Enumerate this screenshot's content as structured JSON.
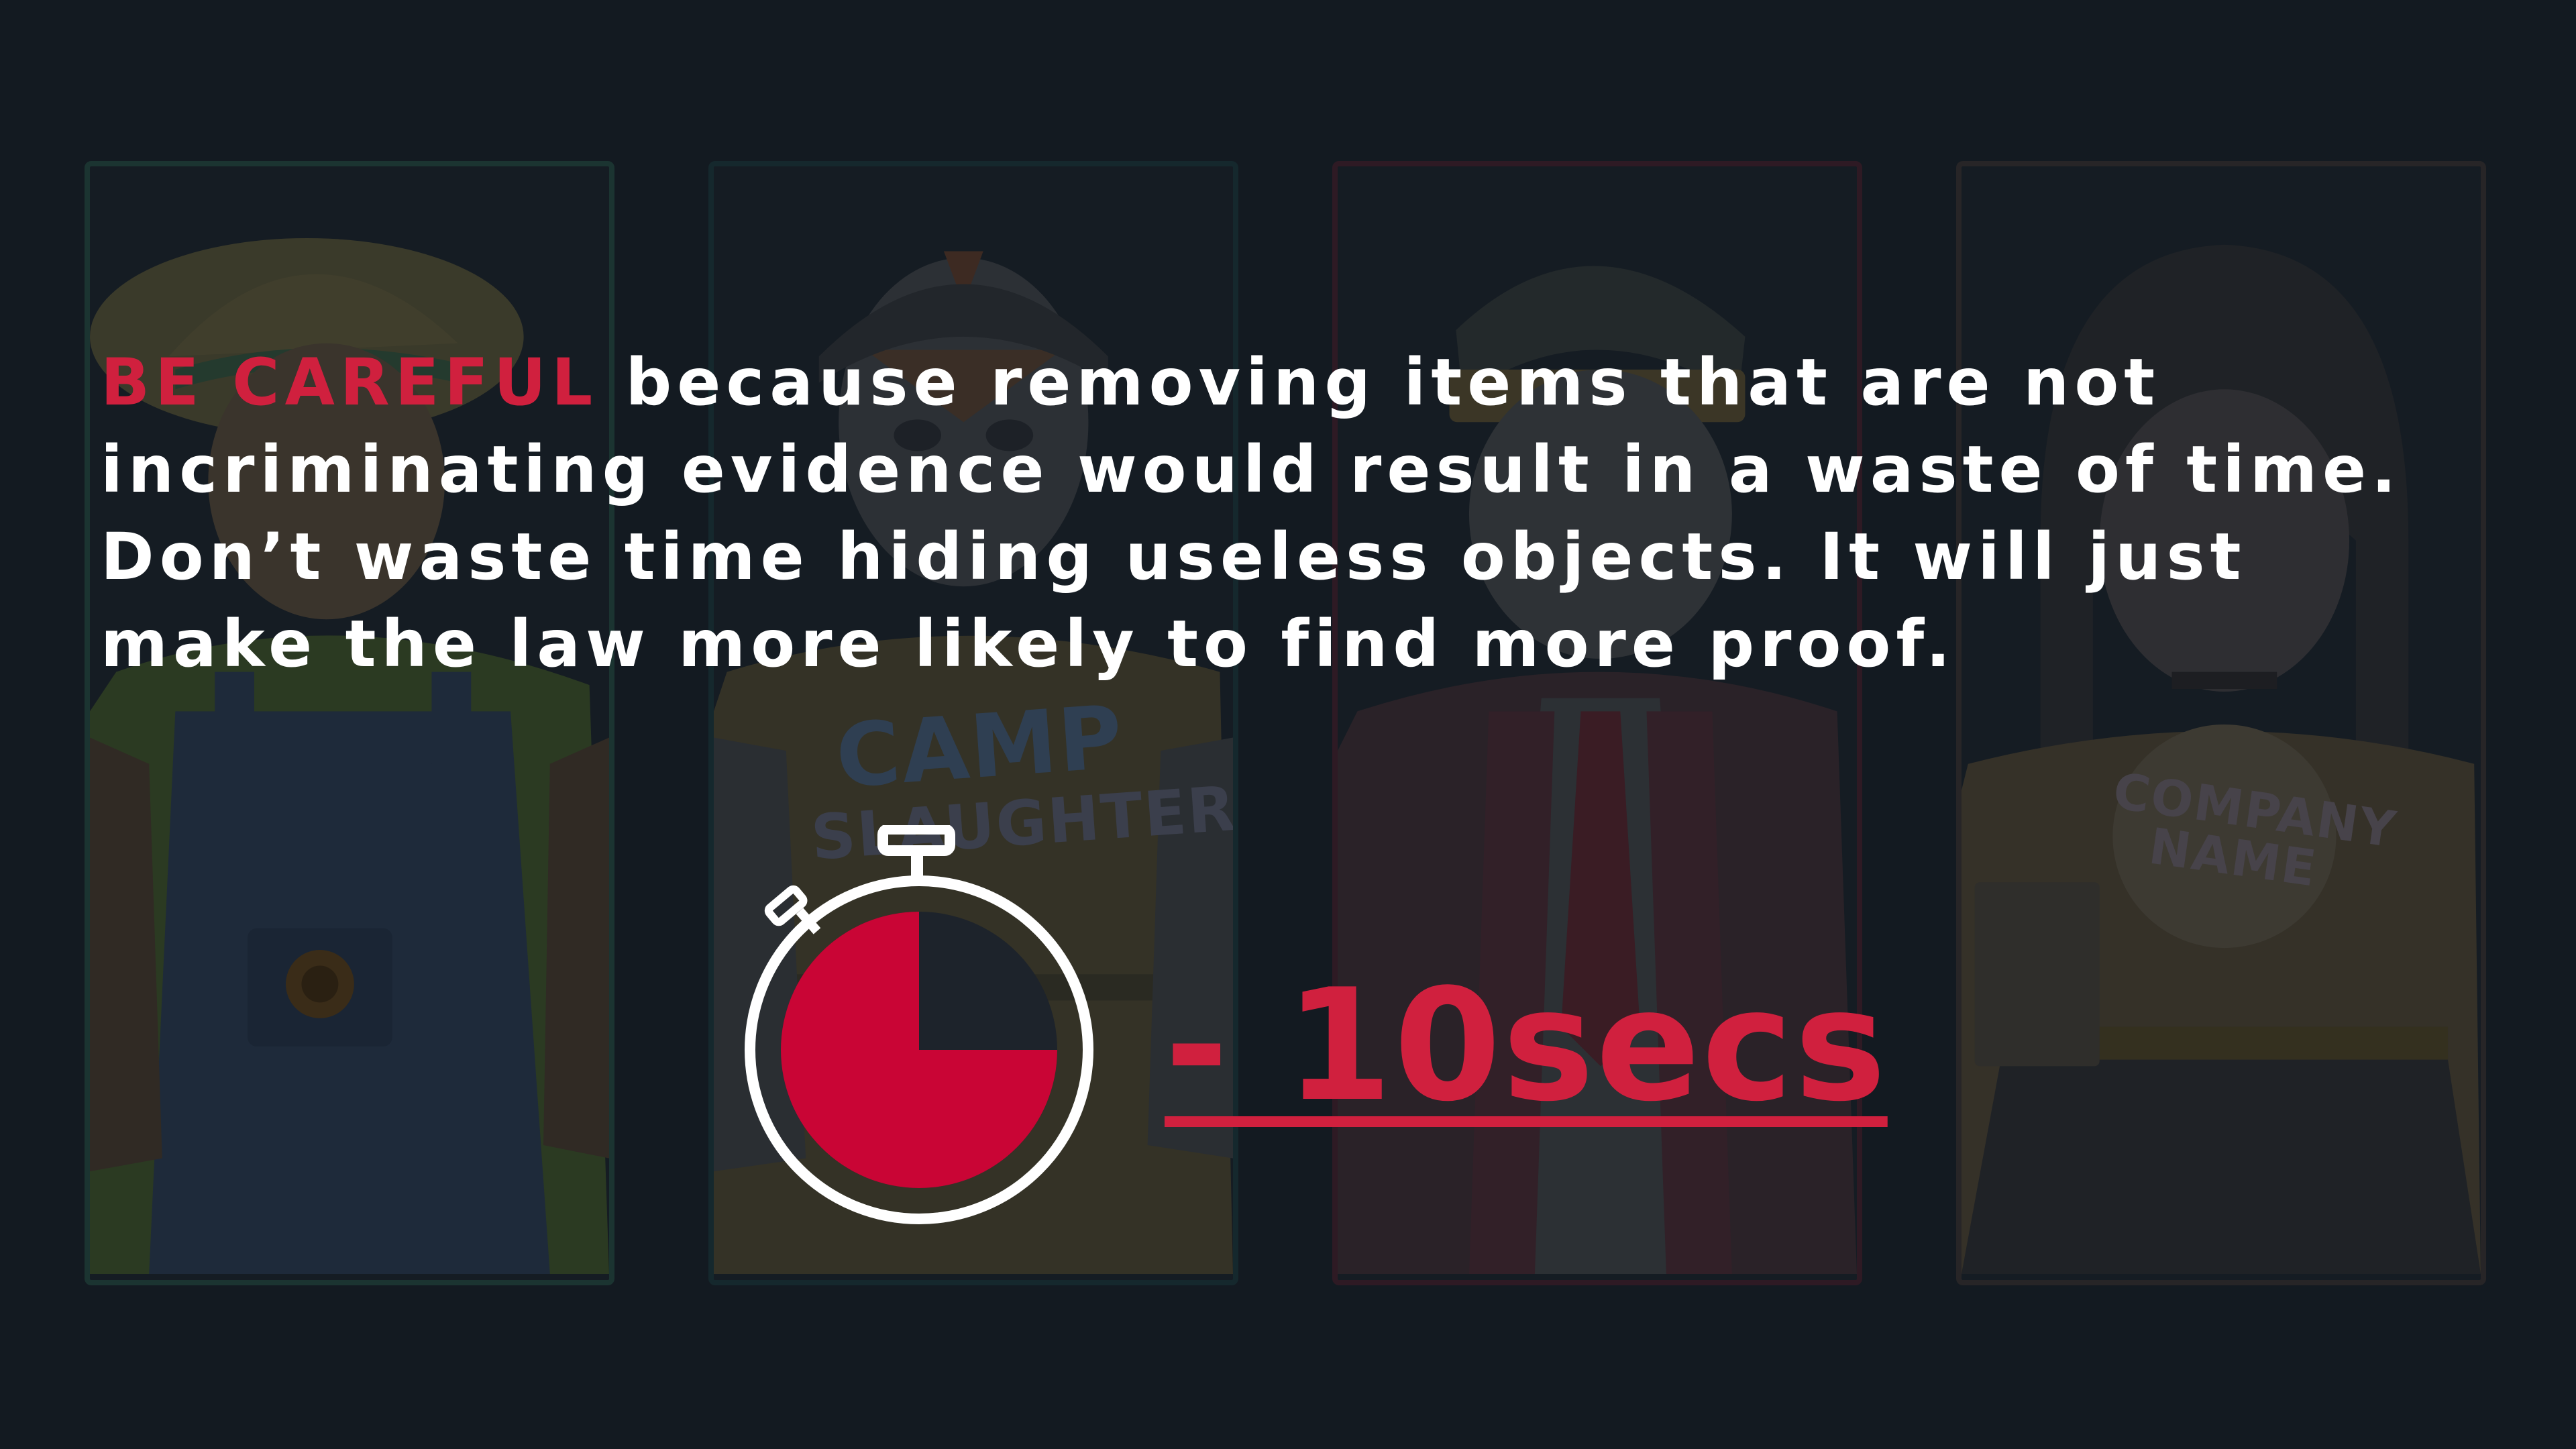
{
  "message": {
    "highlight": "BE CAREFUL",
    "body": " because removing items that are not incriminating evidence would result in a waste of time. Don’t waste time hiding useless objects. It will just make the law more likely to find more proof."
  },
  "penalty": {
    "label": "- 10secs"
  },
  "cards": [
    {
      "character": "farmer",
      "accent": "#1b3431"
    },
    {
      "character": "camp-counselor",
      "accent": "#15282d",
      "shirt_text_main": "CAMP",
      "shirt_text_sub": "SLAUGHTER"
    },
    {
      "character": "businessman",
      "accent": "#2e1a24"
    },
    {
      "character": "office-worker",
      "accent": "#272527",
      "shirt_text_main": "COMPANY NAME"
    }
  ],
  "colors": {
    "background": "#131a21",
    "accent_red": "#d0203e",
    "text": "#ffffff"
  },
  "icons": {
    "timer": "stopwatch-icon"
  }
}
